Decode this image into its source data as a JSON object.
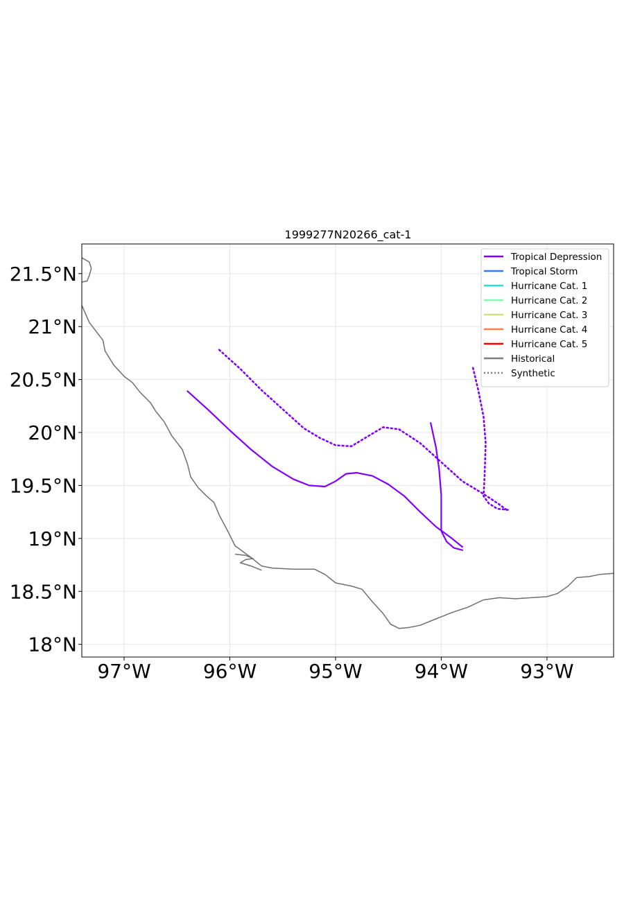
{
  "title": "1999277N20266_cat-1",
  "colors": {
    "coast": "#6e6e6e",
    "grid": "#e6e6e6",
    "tropical_depression": "#8000ff"
  },
  "axes": {
    "xlim": [
      -97.4,
      -92.37
    ],
    "ylim": [
      17.88,
      21.78
    ],
    "x_ticks": [
      {
        "value": -97,
        "label": "97°W"
      },
      {
        "value": -96,
        "label": "96°W"
      },
      {
        "value": -95,
        "label": "95°W"
      },
      {
        "value": -94,
        "label": "94°W"
      },
      {
        "value": -93,
        "label": "93°W"
      }
    ],
    "y_ticks": [
      {
        "value": 18.0,
        "label": "18°N"
      },
      {
        "value": 18.5,
        "label": "18.5°N"
      },
      {
        "value": 19.0,
        "label": "19°N"
      },
      {
        "value": 19.5,
        "label": "19.5°N"
      },
      {
        "value": 20.0,
        "label": "20°N"
      },
      {
        "value": 20.5,
        "label": "20.5°N"
      },
      {
        "value": 21.0,
        "label": "21°N"
      },
      {
        "value": 21.5,
        "label": "21.5°N"
      }
    ],
    "grid": true
  },
  "legend": {
    "placement": "top-right",
    "entries": [
      {
        "label": "Tropical Depression",
        "color": "#8000ff",
        "style": "solid"
      },
      {
        "label": "Tropical Storm",
        "color": "#2c7fec",
        "style": "solid"
      },
      {
        "label": "Hurricane Cat. 1",
        "color": "#2adddd",
        "style": "solid"
      },
      {
        "label": "Hurricane Cat. 2",
        "color": "#80ffb4",
        "style": "solid"
      },
      {
        "label": "Hurricane Cat. 3",
        "color": "#d4dd80",
        "style": "solid"
      },
      {
        "label": "Hurricane Cat. 4",
        "color": "#ff7f43",
        "style": "solid"
      },
      {
        "label": "Hurricane Cat. 5",
        "color": "#ff0000",
        "style": "solid"
      },
      {
        "label": "Historical",
        "color": "#808080",
        "style": "solid"
      },
      {
        "label": "Synthetic",
        "color": "#808080",
        "style": "dotted"
      }
    ]
  },
  "chart_data": {
    "type": "map-tracks",
    "title": "1999277N20266_cat-1",
    "tracks": [
      {
        "kind": "Historical",
        "category": "Tropical Depression",
        "points": [
          [
            -96.4,
            20.39
          ],
          [
            -96.2,
            20.21
          ],
          [
            -96.0,
            20.02
          ],
          [
            -95.8,
            19.84
          ],
          [
            -95.6,
            19.68
          ],
          [
            -95.4,
            19.56
          ],
          [
            -95.25,
            19.5
          ],
          [
            -95.1,
            19.49
          ],
          [
            -95.0,
            19.54
          ],
          [
            -94.9,
            19.61
          ],
          [
            -94.8,
            19.62
          ],
          [
            -94.65,
            19.59
          ],
          [
            -94.5,
            19.51
          ],
          [
            -94.35,
            19.4
          ],
          [
            -94.2,
            19.25
          ],
          [
            -94.05,
            19.11
          ],
          [
            -93.9,
            19.0
          ],
          [
            -93.8,
            18.92
          ]
        ]
      },
      {
        "kind": "Historical",
        "category": "Tropical Depression",
        "points": [
          [
            -94.1,
            20.09
          ],
          [
            -94.05,
            19.86
          ],
          [
            -94.02,
            19.65
          ],
          [
            -94.0,
            19.41
          ],
          [
            -94.0,
            19.2
          ],
          [
            -94.0,
            19.07
          ],
          [
            -93.95,
            18.97
          ],
          [
            -93.88,
            18.91
          ],
          [
            -93.8,
            18.89
          ]
        ]
      },
      {
        "kind": "Synthetic",
        "category": "Tropical Depression",
        "points": [
          [
            -96.1,
            20.78
          ],
          [
            -95.9,
            20.6
          ],
          [
            -95.7,
            20.4
          ],
          [
            -95.5,
            20.22
          ],
          [
            -95.3,
            20.04
          ],
          [
            -95.15,
            19.95
          ],
          [
            -95.0,
            19.88
          ],
          [
            -94.85,
            19.87
          ],
          [
            -94.7,
            19.96
          ],
          [
            -94.55,
            20.05
          ],
          [
            -94.4,
            20.03
          ],
          [
            -94.2,
            19.9
          ],
          [
            -94.0,
            19.72
          ],
          [
            -93.8,
            19.54
          ],
          [
            -93.6,
            19.42
          ],
          [
            -93.45,
            19.32
          ],
          [
            -93.37,
            19.26
          ]
        ]
      },
      {
        "kind": "Synthetic",
        "category": "Tropical Depression",
        "points": [
          [
            -93.7,
            20.61
          ],
          [
            -93.65,
            20.4
          ],
          [
            -93.6,
            20.15
          ],
          [
            -93.58,
            19.9
          ],
          [
            -93.59,
            19.6
          ],
          [
            -93.6,
            19.4
          ],
          [
            -93.55,
            19.33
          ],
          [
            -93.47,
            19.28
          ],
          [
            -93.37,
            19.27
          ]
        ]
      }
    ],
    "coastline": [
      [
        [
          -97.4,
          21.65
        ],
        [
          -97.33,
          21.61
        ],
        [
          -97.31,
          21.55
        ],
        [
          -97.33,
          21.48
        ],
        [
          -97.35,
          21.43
        ],
        [
          -97.4,
          21.42
        ]
      ],
      [
        [
          -97.4,
          21.2
        ],
        [
          -97.33,
          21.04
        ],
        [
          -97.2,
          20.87
        ],
        [
          -97.18,
          20.77
        ],
        [
          -97.1,
          20.64
        ],
        [
          -97.0,
          20.53
        ],
        [
          -96.92,
          20.47
        ],
        [
          -96.85,
          20.38
        ],
        [
          -96.75,
          20.28
        ],
        [
          -96.7,
          20.2
        ],
        [
          -96.62,
          20.1
        ],
        [
          -96.55,
          19.97
        ],
        [
          -96.45,
          19.84
        ],
        [
          -96.4,
          19.7
        ],
        [
          -96.37,
          19.58
        ],
        [
          -96.3,
          19.48
        ],
        [
          -96.22,
          19.4
        ],
        [
          -96.15,
          19.34
        ],
        [
          -96.1,
          19.22
        ],
        [
          -96.02,
          19.07
        ],
        [
          -95.95,
          18.93
        ],
        [
          -95.8,
          18.82
        ],
        [
          -95.7,
          18.74
        ],
        [
          -95.6,
          18.72
        ],
        [
          -95.4,
          18.71
        ],
        [
          -95.2,
          18.71
        ],
        [
          -95.1,
          18.66
        ],
        [
          -95.0,
          18.58
        ],
        [
          -94.85,
          18.55
        ],
        [
          -94.75,
          18.52
        ],
        [
          -94.65,
          18.4
        ],
        [
          -94.55,
          18.29
        ],
        [
          -94.48,
          18.19
        ],
        [
          -94.4,
          18.15
        ],
        [
          -94.3,
          18.16
        ],
        [
          -94.2,
          18.18
        ],
        [
          -94.1,
          18.22
        ],
        [
          -94.0,
          18.26
        ],
        [
          -93.9,
          18.3
        ],
        [
          -93.75,
          18.35
        ],
        [
          -93.6,
          18.42
        ],
        [
          -93.45,
          18.44
        ],
        [
          -93.3,
          18.43
        ],
        [
          -93.15,
          18.44
        ],
        [
          -93.0,
          18.45
        ],
        [
          -92.9,
          18.48
        ],
        [
          -92.8,
          18.55
        ],
        [
          -92.72,
          18.63
        ],
        [
          -92.6,
          18.64
        ],
        [
          -92.5,
          18.66
        ],
        [
          -92.37,
          18.67
        ]
      ],
      [
        [
          -95.95,
          18.85
        ],
        [
          -95.85,
          18.84
        ],
        [
          -95.78,
          18.81
        ],
        [
          -95.85,
          18.8
        ],
        [
          -95.9,
          18.77
        ],
        [
          -95.8,
          18.74
        ],
        [
          -95.7,
          18.7
        ]
      ]
    ]
  }
}
